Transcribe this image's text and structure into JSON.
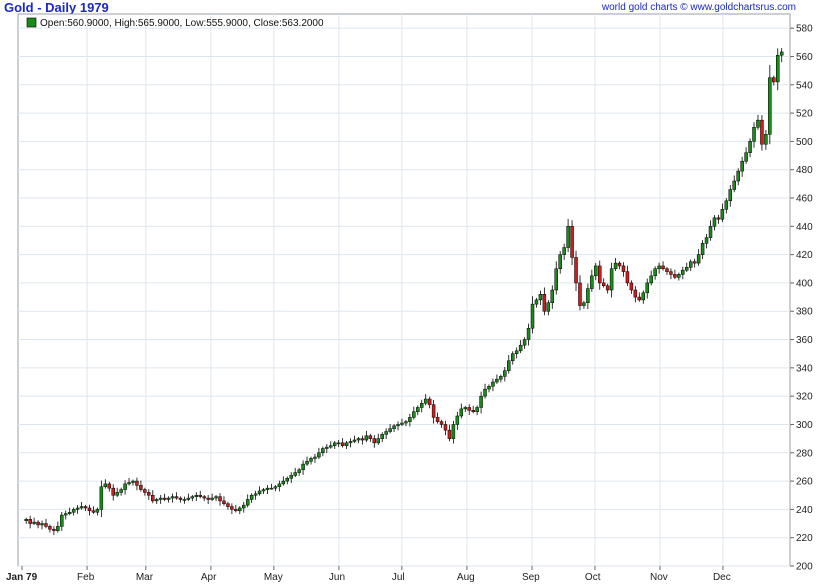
{
  "header": {
    "title": "Gold - Daily 1979",
    "credit": "world gold charts © www.goldchartsrus.com"
  },
  "legend": {
    "text": "Open:560.9000, High:565.9000, Low:555.9000, Close:563.2000",
    "swatch_color": "#1a8a1a"
  },
  "colors": {
    "up": "#1a8a1a",
    "down": "#c81e1e",
    "wick": "#000000",
    "grid": "#dde6ee"
  },
  "chart_data": {
    "type": "candlestick",
    "title": "Gold - Daily 1979",
    "x_tick_labels": [
      "Jan 79",
      "Feb",
      "Mar",
      "Apr",
      "May",
      "Jun",
      "Jul",
      "Aug",
      "Sep",
      "Oct",
      "Nov",
      "Dec"
    ],
    "y_tick_labels": [
      "200",
      "220",
      "240",
      "260",
      "280",
      "300",
      "320",
      "340",
      "360",
      "380",
      "400",
      "420",
      "440",
      "460",
      "480",
      "500",
      "520",
      "540",
      "560",
      "580"
    ],
    "ylim": [
      200,
      590
    ],
    "grid": true,
    "last_bar": {
      "open": 560.9,
      "high": 565.9,
      "low": 555.9,
      "close": 563.2
    },
    "daily_close": [
      233,
      230,
      231,
      229,
      230,
      228,
      226,
      225,
      228,
      236,
      237,
      238,
      240,
      241,
      242,
      241,
      239,
      238,
      240,
      256,
      258,
      255,
      250,
      252,
      254,
      258,
      259,
      260,
      257,
      254,
      252,
      250,
      246,
      247,
      248,
      247,
      248,
      249,
      248,
      247,
      247,
      248,
      249,
      250,
      249,
      248,
      247,
      248,
      249,
      246,
      244,
      242,
      240,
      239,
      241,
      243,
      247,
      250,
      251,
      253,
      254,
      255,
      255,
      256,
      258,
      260,
      262,
      264,
      266,
      268,
      272,
      274,
      276,
      277,
      280,
      283,
      284,
      285,
      287,
      287,
      285,
      287,
      288,
      289,
      290,
      289,
      292,
      290,
      287,
      290,
      293,
      295,
      297,
      299,
      300,
      301,
      302,
      305,
      309,
      312,
      315,
      318,
      314,
      305,
      302,
      300,
      296,
      290,
      300,
      306,
      311,
      312,
      310,
      309,
      312,
      320,
      325,
      327,
      330,
      332,
      334,
      338,
      345,
      350,
      352,
      356,
      360,
      368,
      385,
      388,
      392,
      380,
      386,
      395,
      410,
      420,
      425,
      440,
      418,
      400,
      384,
      386,
      396,
      405,
      412,
      400,
      398,
      395,
      410,
      414,
      412,
      408,
      400,
      395,
      390,
      388,
      393,
      400,
      405,
      410,
      412,
      410,
      408,
      406,
      404,
      406,
      409,
      411,
      415,
      414,
      420,
      428,
      432,
      440,
      446,
      445,
      452,
      458,
      466,
      472,
      479,
      486,
      492,
      500,
      510,
      515,
      498,
      505,
      545,
      542,
      560.9,
      563.2
    ]
  }
}
